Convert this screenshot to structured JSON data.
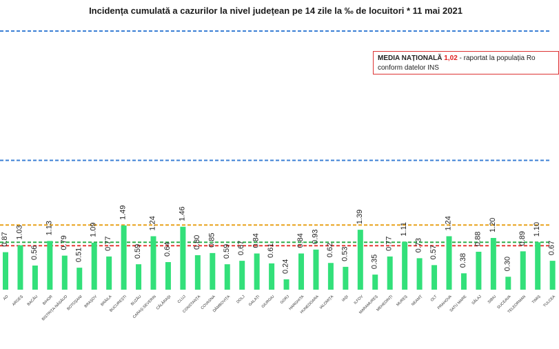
{
  "title": "Incidența cumulată a cazurilor la nivel județean pe 14 zile la ‰ de locuitori *  11 mai 2021",
  "legend": {
    "label": "MEDIA NAȚIONALĂ",
    "value": "1,02",
    "text": " - raportat la populația Ro",
    "text2": "conform datelor INS"
  },
  "colors": {
    "bar": "#33e07a",
    "blue_line": "#3a7fd5",
    "orange_line": "#e8a21a",
    "green_line": "#2fae4a",
    "red_line": "#e53935"
  },
  "chart_data": {
    "type": "bar",
    "title": "Incidența cumulată a cazurilor la nivel județean pe 14 zile la ‰ de locuitori *  11 mai 2021",
    "categories": [
      "AD",
      "ARGEȘ",
      "BACĂU",
      "BIHOR",
      "BISTRIȚA-NĂSĂUD",
      "BOTOȘANI",
      "BRAȘOV",
      "BRĂILA",
      "BUCUREȘTI",
      "BUZĂU",
      "CARAȘ-SEVERIN",
      "CĂLĂRAȘI",
      "CLUJ",
      "CONSTANȚA",
      "COVASNA",
      "DÂMBOVIȚA",
      "DOLJ",
      "GALAȚI",
      "GIURGIU",
      "GORJ",
      "HARGHITA",
      "HUNEDOARA",
      "IALOMIȚA",
      "IAȘI",
      "ILFOV",
      "MARAMUREȘ",
      "MEHEDINȚI",
      "MUREȘ",
      "NEAMȚ",
      "OLT",
      "PRAHOVA",
      "SATU MARE",
      "SĂLAJ",
      "SIBIU",
      "SUCEAVA",
      "TELEORMAN",
      "TIMIȘ",
      "TULCEA"
    ],
    "values": [
      0.87,
      1.03,
      0.56,
      1.13,
      0.79,
      0.51,
      1.09,
      0.77,
      1.49,
      0.59,
      1.24,
      0.64,
      1.46,
      0.8,
      0.85,
      0.59,
      0.67,
      0.84,
      0.61,
      0.24,
      0.84,
      0.93,
      0.62,
      0.53,
      1.39,
      0.35,
      0.77,
      1.11,
      0.73,
      0.57,
      1.24,
      0.38,
      0.88,
      1.2,
      0.3,
      0.89,
      1.1,
      0.67
    ],
    "value_labels": [
      "0.87",
      "1.03",
      "0.56",
      "1.13",
      "0.79",
      "0.51",
      "1.09",
      "0.77",
      "1.49",
      "0.59",
      "1.24",
      "0.64",
      "1.46",
      "0.80",
      "0.85",
      "0.59",
      "0.67",
      "0.84",
      "0.61",
      "0.24",
      "0.84",
      "0.93",
      "0.62",
      "0.53",
      "1.39",
      "0.35",
      "0.77",
      "1.11",
      "0.73",
      "0.57",
      "1.24",
      "0.38",
      "0.88",
      "1.20",
      "0.30",
      "0.89",
      "1.10",
      "0.67"
    ],
    "reference_lines": [
      {
        "value": 6.0,
        "color": "#3a7fd5"
      },
      {
        "value": 3.0,
        "color": "#3a7fd5"
      },
      {
        "value": 1.5,
        "color": "#e8a21a"
      },
      {
        "value": 1.1,
        "color": "#2fae4a"
      },
      {
        "value": 1.02,
        "color": "#e53935"
      }
    ],
    "ylim": [
      0,
      6.4
    ],
    "grid": false
  }
}
